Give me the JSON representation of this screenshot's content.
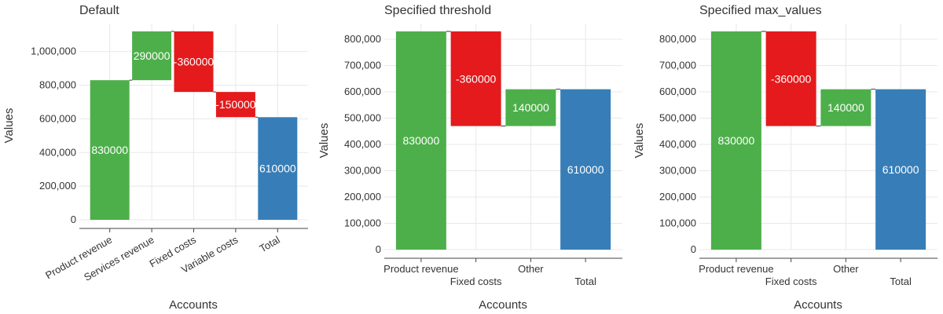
{
  "chart_data": [
    {
      "type": "waterfall",
      "title": "Default",
      "xlabel": "Accounts",
      "ylabel": "Values",
      "ylim": [
        0,
        1120000
      ],
      "yticks": [
        0,
        200000,
        400000,
        600000,
        800000,
        1000000
      ],
      "ytick_labels": [
        "0",
        "200,000",
        "400,000",
        "600,000",
        "800,000",
        "1,000,000"
      ],
      "categories": [
        "Product revenue",
        "Services revenue",
        "Fixed costs",
        "Variable costs",
        "Total"
      ],
      "values": [
        830000,
        290000,
        -360000,
        -150000,
        610000
      ],
      "value_labels": [
        "830000",
        "290000",
        "-360000",
        "-150000",
        "610000"
      ],
      "is_total": [
        false,
        false,
        false,
        false,
        true
      ],
      "rotated_ticks": true
    },
    {
      "type": "waterfall",
      "title": "Specified threshold",
      "xlabel": "Accounts",
      "ylabel": "Values",
      "ylim": [
        0,
        830000
      ],
      "yticks": [
        0,
        100000,
        200000,
        300000,
        400000,
        500000,
        600000,
        700000,
        800000
      ],
      "ytick_labels": [
        "0",
        "100,000",
        "200,000",
        "300,000",
        "400,000",
        "500,000",
        "600,000",
        "700,000",
        "800,000"
      ],
      "categories": [
        "Product revenue",
        "Fixed costs",
        "Other",
        "Total"
      ],
      "values": [
        830000,
        -360000,
        140000,
        610000
      ],
      "value_labels": [
        "830000",
        "-360000",
        "140000",
        "610000"
      ],
      "is_total": [
        false,
        false,
        false,
        true
      ],
      "rotated_ticks": false
    },
    {
      "type": "waterfall",
      "title": "Specified max_values",
      "xlabel": "Accounts",
      "ylabel": "Values",
      "ylim": [
        0,
        830000
      ],
      "yticks": [
        0,
        100000,
        200000,
        300000,
        400000,
        500000,
        600000,
        700000,
        800000
      ],
      "ytick_labels": [
        "0",
        "100,000",
        "200,000",
        "300,000",
        "400,000",
        "500,000",
        "600,000",
        "700,000",
        "800,000"
      ],
      "categories": [
        "Product revenue",
        "Fixed costs",
        "Other",
        "Total"
      ],
      "values": [
        830000,
        -360000,
        140000,
        610000
      ],
      "value_labels": [
        "830000",
        "-360000",
        "140000",
        "610000"
      ],
      "is_total": [
        false,
        false,
        false,
        true
      ],
      "rotated_ticks": false
    }
  ],
  "colors": {
    "increase": "#4daf4a",
    "decrease": "#e41a1c",
    "total": "#377eb8"
  }
}
